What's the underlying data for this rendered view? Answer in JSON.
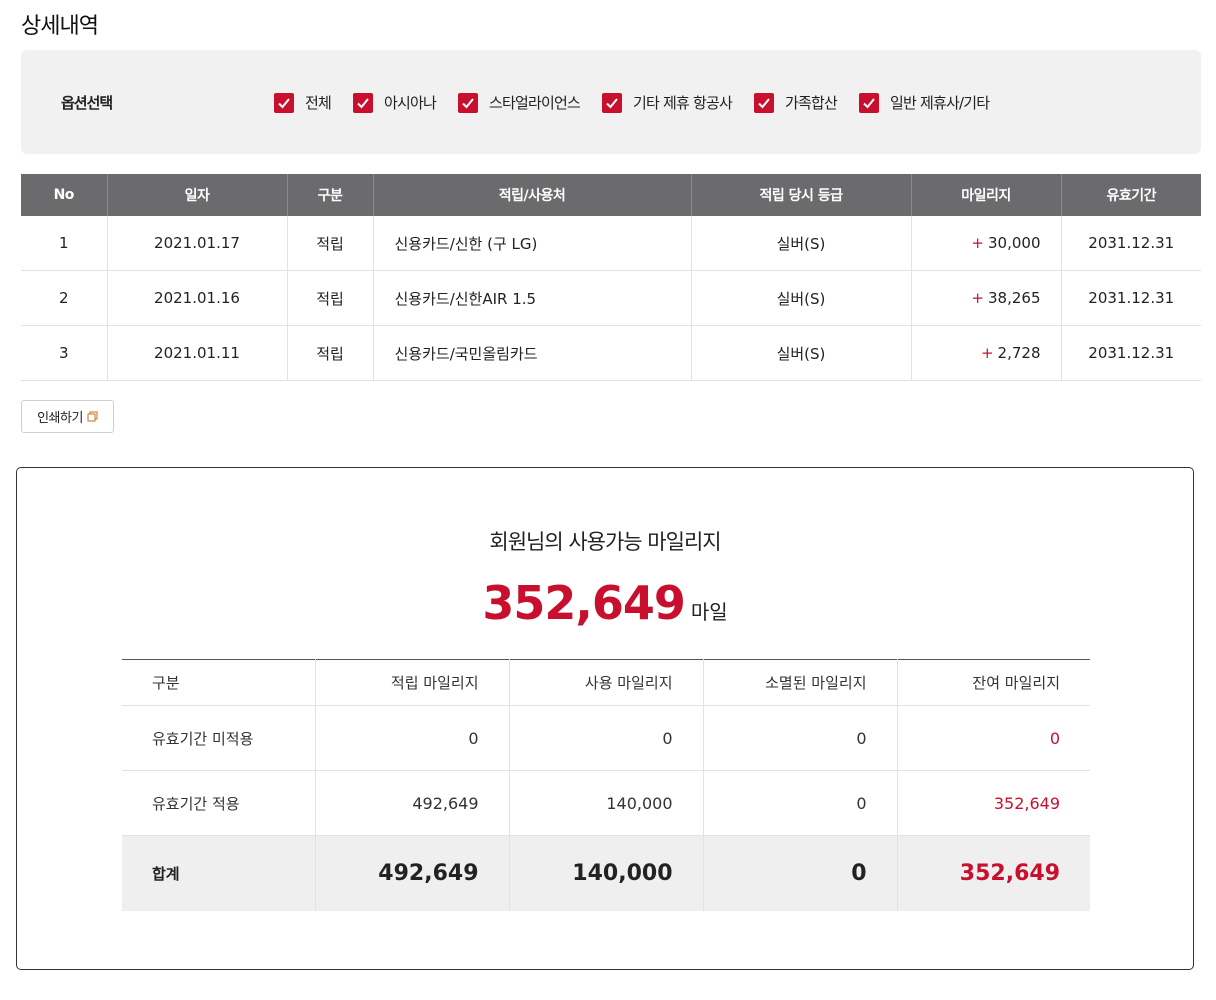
{
  "page_title": "상세내역",
  "filter": {
    "label": "옵션선택",
    "options": [
      "전체",
      "아시아나",
      "스타얼라이언스",
      "기타 제휴 항공사",
      "가족합산",
      "일반 제휴사/기타"
    ]
  },
  "detail_table": {
    "headers": [
      "No",
      "일자",
      "구분",
      "적립/사용처",
      "적립 당시 등급",
      "마일리지",
      "유효기간"
    ],
    "rows": [
      {
        "no": "1",
        "date": "2021.01.17",
        "type": "적립",
        "place": "신용카드/신한 (구 LG)",
        "grade": "실버(S)",
        "sign": "+",
        "miles": "30,000",
        "expiry": "2031.12.31"
      },
      {
        "no": "2",
        "date": "2021.01.16",
        "type": "적립",
        "place": "신용카드/신한AIR 1.5",
        "grade": "실버(S)",
        "sign": "+",
        "miles": "38,265",
        "expiry": "2031.12.31"
      },
      {
        "no": "3",
        "date": "2021.01.11",
        "type": "적립",
        "place": "신용카드/국민올림카드",
        "grade": "실버(S)",
        "sign": "+",
        "miles": "2,728",
        "expiry": "2031.12.31"
      }
    ]
  },
  "print_button": "인쇄하기",
  "summary": {
    "title": "회원님의 사용가능 마일리지",
    "amount": "352,649",
    "unit": "마일",
    "headers": [
      "구분",
      "적립 마일리지",
      "사용 마일리지",
      "소멸된 마일리지",
      "잔여 마일리지"
    ],
    "rows": [
      [
        "유효기간 미적용",
        "0",
        "0",
        "0",
        "0"
      ],
      [
        "유효기간 적용",
        "492,649",
        "140,000",
        "0",
        "352,649"
      ]
    ],
    "total": [
      "합계",
      "492,649",
      "140,000",
      "0",
      "352,649"
    ]
  },
  "colors": {
    "accent": "#c8102e",
    "header_bg": "#6b6b6d",
    "filter_bg": "#f1f1f1"
  }
}
